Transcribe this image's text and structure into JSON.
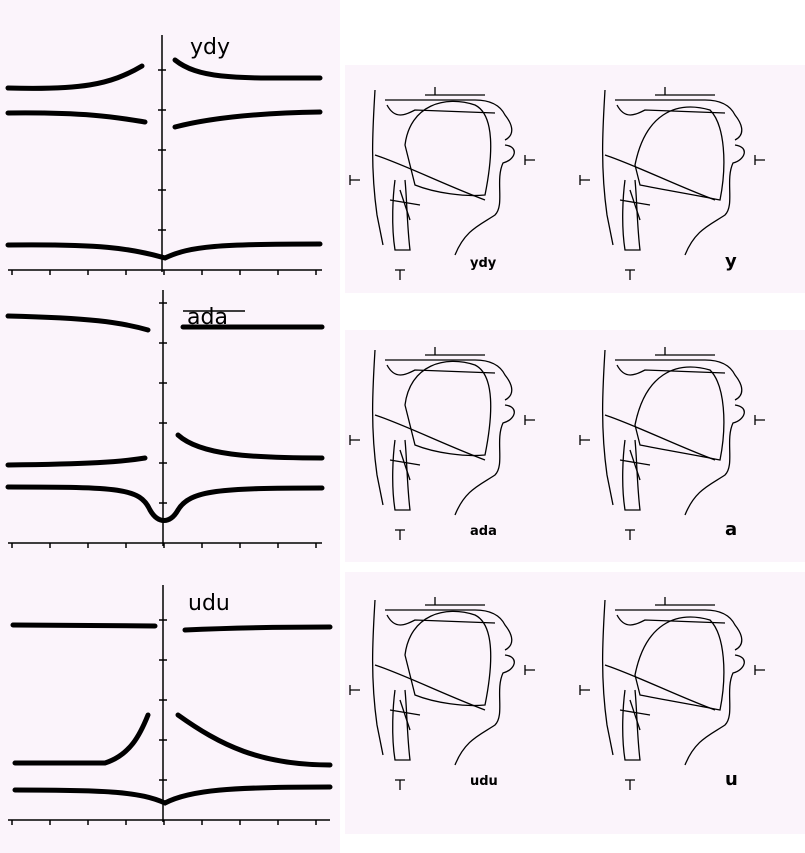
{
  "panels": [
    {
      "plot_label": "ydy",
      "sketch_labels": [
        "ydy",
        "y"
      ]
    },
    {
      "plot_label": "ada",
      "sketch_labels": [
        "ada",
        "a"
      ]
    },
    {
      "plot_label": "udu",
      "sketch_labels": [
        "udu",
        "u"
      ]
    }
  ]
}
